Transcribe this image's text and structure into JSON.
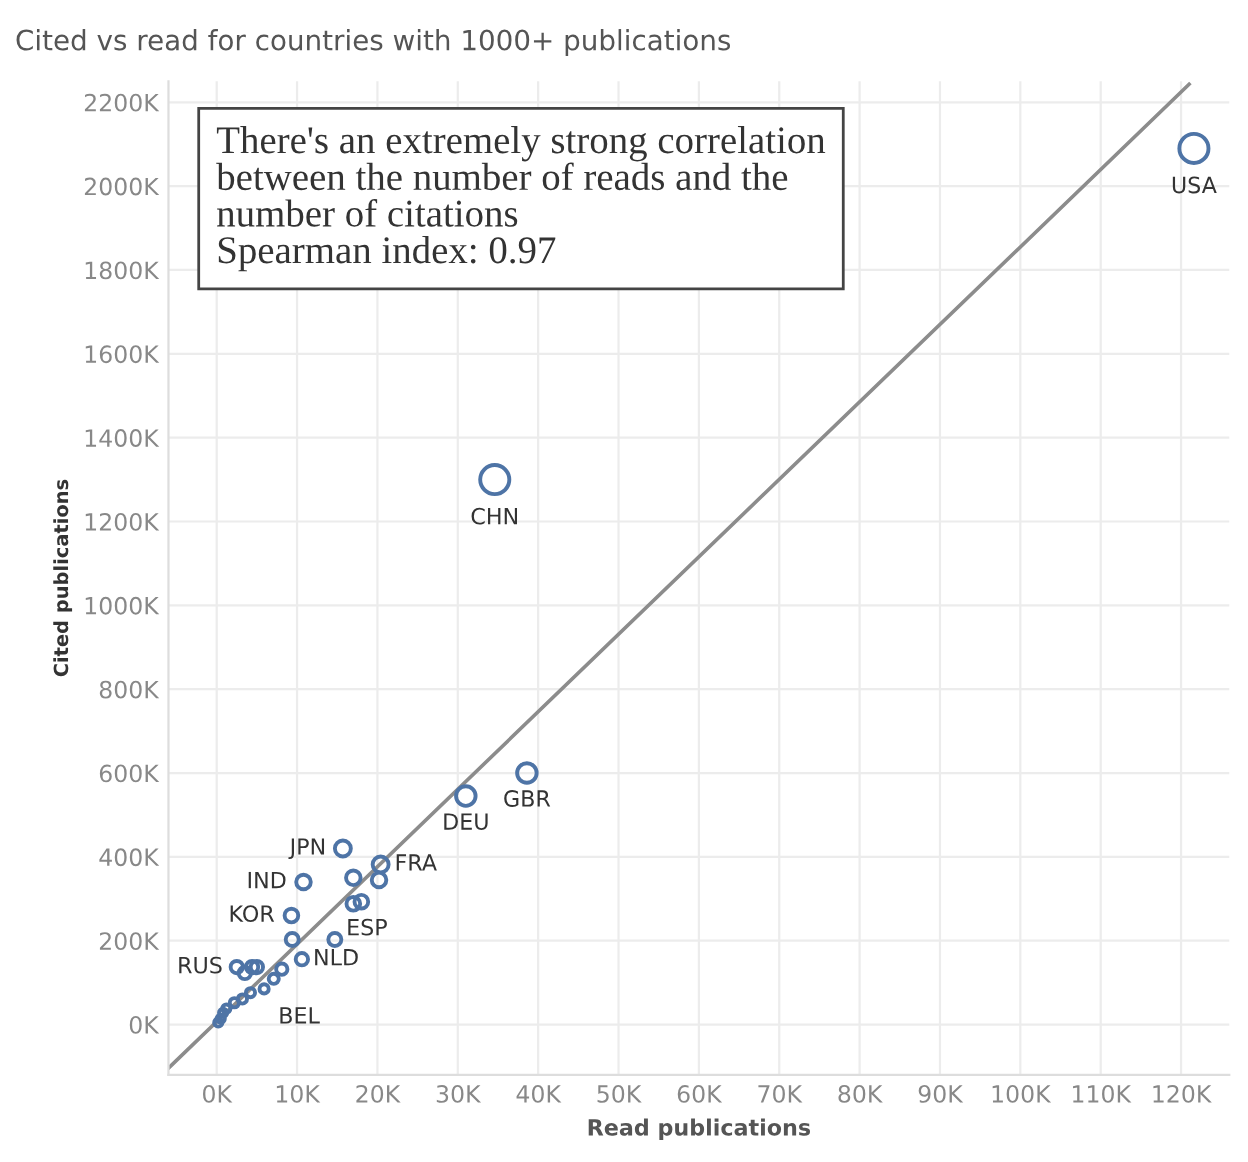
{
  "chart_data": {
    "type": "bubble",
    "title": "Cited vs read for countries with 1000+ publications",
    "xlabel": "Read publications",
    "ylabel": "Cited publications",
    "xlim": [
      -6,
      126
    ],
    "ylim": [
      -120,
      2250
    ],
    "xticks": [
      {
        "value": 0,
        "label": "0K"
      },
      {
        "value": 10,
        "label": "10K"
      },
      {
        "value": 20,
        "label": "20K"
      },
      {
        "value": 30,
        "label": "30K"
      },
      {
        "value": 40,
        "label": "40K"
      },
      {
        "value": 50,
        "label": "50K"
      },
      {
        "value": 60,
        "label": "60K"
      },
      {
        "value": 70,
        "label": "70K"
      },
      {
        "value": 80,
        "label": "80K"
      },
      {
        "value": 90,
        "label": "90K"
      },
      {
        "value": 100,
        "label": "100K"
      },
      {
        "value": 110,
        "label": "110K"
      },
      {
        "value": 120,
        "label": "120K"
      }
    ],
    "yticks": [
      {
        "value": 0,
        "label": "0K"
      },
      {
        "value": 200,
        "label": "200K"
      },
      {
        "value": 400,
        "label": "400K"
      },
      {
        "value": 600,
        "label": "600K"
      },
      {
        "value": 800,
        "label": "800K"
      },
      {
        "value": 1000,
        "label": "1000K"
      },
      {
        "value": 1200,
        "label": "1200K"
      },
      {
        "value": 1400,
        "label": "1400K"
      },
      {
        "value": 1600,
        "label": "1600K"
      },
      {
        "value": 1800,
        "label": "1800K"
      },
      {
        "value": 2000,
        "label": "2000K"
      },
      {
        "value": 2200,
        "label": "2200K"
      }
    ],
    "grid": true,
    "marker": "circle",
    "series": [
      {
        "color": "#4e74a6",
        "x": [
          121.6,
          34.6,
          38.6,
          31,
          15.7,
          20.4,
          10.8,
          17,
          20.2,
          9.3,
          17,
          18,
          9.4,
          14.7,
          2.5,
          3.5,
          4.4,
          5,
          10.6,
          8.1,
          7.1,
          5.9,
          4.2,
          3.2,
          2.2,
          1.2,
          0.8,
          0.5,
          0.2
        ],
        "values": [
          2090,
          1300,
          600,
          545,
          420,
          382,
          340,
          350,
          345,
          260,
          288,
          293,
          203,
          203,
          137,
          123,
          137,
          137,
          156,
          132,
          109,
          85,
          76,
          61,
          52,
          38,
          28,
          14,
          5
        ],
        "sizes": [
          1,
          1,
          0.45,
          0.45,
          0.3,
          0.3,
          0.25,
          0.25,
          0.25,
          0.22,
          0.22,
          0.22,
          0.2,
          0.2,
          0.18,
          0.18,
          0.18,
          0.18,
          0.18,
          0.15,
          0.12,
          0.1,
          0.1,
          0.1,
          0.1,
          0.08,
          0.08,
          0.08,
          0.08
        ]
      },
      {
        "type": "line",
        "color": "#8c8c8c",
        "x": [
          -6,
          121
        ],
        "values": [
          -104,
          2243
        ],
        "marker": "none"
      }
    ],
    "annotations": [
      {
        "text": "USA",
        "x": 121.6,
        "y": 2090
      },
      {
        "text": "CHN",
        "x": 34.6,
        "y": 1300
      },
      {
        "text": "GBR",
        "x": 38.6,
        "y": 600
      },
      {
        "text": "DEU",
        "x": 31,
        "y": 545
      },
      {
        "text": "JPN",
        "x": 15.7,
        "y": 420
      },
      {
        "text": "FRA",
        "x": 20.4,
        "y": 382
      },
      {
        "text": "IND",
        "x": 10.8,
        "y": 340
      },
      {
        "text": "KOR",
        "x": 9.3,
        "y": 260
      },
      {
        "text": "ESP",
        "x": 18,
        "y": 293
      },
      {
        "text": "RUS",
        "x": 2.5,
        "y": 137
      },
      {
        "text": "NLD",
        "x": 10.6,
        "y": 156
      },
      {
        "text": "BEL",
        "x": 4.2,
        "y": 76
      },
      "There's an extremely strong correlation between the number of reads and the number of citations\nSpearman index: 0.97"
    ]
  }
}
